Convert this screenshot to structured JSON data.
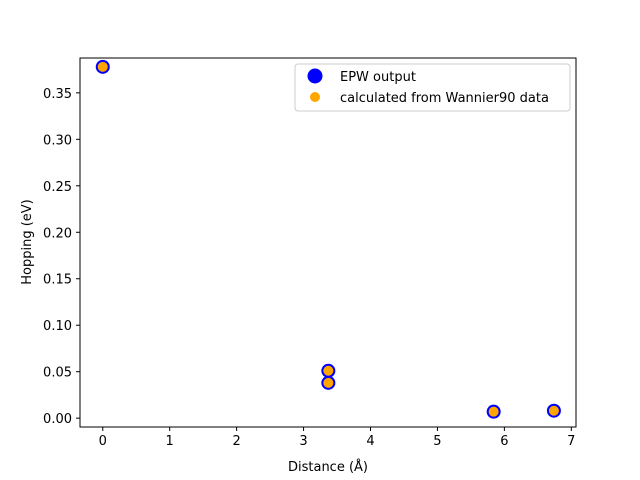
{
  "chart_data": {
    "type": "scatter",
    "title": "",
    "xlabel": "Distance (Å)",
    "ylabel": "Hopping (eV)",
    "xlim": [
      -0.34,
      7.07
    ],
    "ylim": [
      -0.0095,
      0.3875
    ],
    "xticks": [
      0,
      1,
      2,
      3,
      4,
      5,
      6,
      7
    ],
    "xtick_labels": [
      "0",
      "1",
      "2",
      "3",
      "4",
      "5",
      "6",
      "7"
    ],
    "yticks": [
      0.0,
      0.05,
      0.1,
      0.15,
      0.2,
      0.25,
      0.3,
      0.35
    ],
    "ytick_labels": [
      "0.00",
      "0.05",
      "0.10",
      "0.15",
      "0.20",
      "0.25",
      "0.30",
      "0.35"
    ],
    "grid": false,
    "legend_position": "top-right",
    "series": [
      {
        "name": "EPW output",
        "color": "#0000ff",
        "marker": "circle-large",
        "x": [
          0.0,
          3.37,
          3.37,
          5.84,
          6.74
        ],
        "y": [
          0.378,
          0.051,
          0.038,
          0.007,
          0.008
        ]
      },
      {
        "name": "calculated from Wannier90 data",
        "color": "#ffa500",
        "marker": "circle-small",
        "x": [
          0.0,
          3.37,
          3.37,
          5.84,
          6.74
        ],
        "y": [
          0.378,
          0.051,
          0.038,
          0.007,
          0.008
        ]
      }
    ]
  }
}
